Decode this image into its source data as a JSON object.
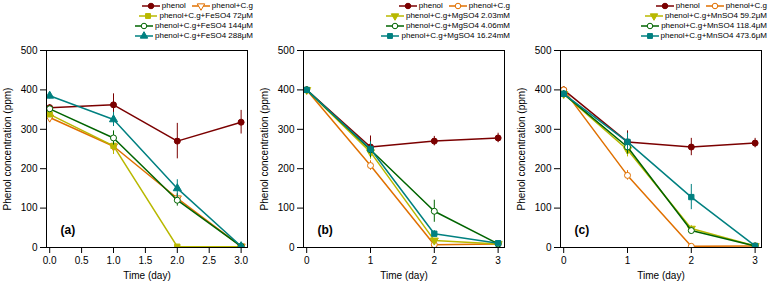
{
  "chart_data": [
    {
      "type": "line",
      "annotation": "(a)",
      "xlabel": "Time (day)",
      "ylabel": "Phenol concentration (ppm)",
      "xlim": [
        -0.05,
        3.1
      ],
      "ylim": [
        0,
        500
      ],
      "xticks": [
        {
          "value": 0.0,
          "label": "0.0"
        },
        {
          "value": 0.5,
          "label": "0.5"
        },
        {
          "value": 1.0,
          "label": "1.0"
        },
        {
          "value": 1.5,
          "label": "1.5"
        },
        {
          "value": 2.0,
          "label": "2.0"
        },
        {
          "value": 2.5,
          "label": "2.5"
        },
        {
          "value": 3.0,
          "label": "3.0"
        }
      ],
      "yticks": [
        0,
        100,
        200,
        300,
        400,
        500
      ],
      "grid": false,
      "legend": "upper right",
      "x": [
        0,
        1,
        2,
        3
      ],
      "series": [
        {
          "name": "phenol",
          "color": "#7B0000",
          "marker": "circle",
          "values": [
            355,
            362,
            270,
            318
          ],
          "errors": [
            8,
            28,
            45,
            30
          ]
        },
        {
          "name": "phenol+C.g",
          "color": "#E07000",
          "marker": "triangle-down-open",
          "values": [
            330,
            257,
            125,
            3
          ],
          "errors": [
            8,
            18,
            12,
            2
          ]
        },
        {
          "name": "phenol+C.g+FeSO4 72μM",
          "color": "#B8B800",
          "marker": "square",
          "values": [
            338,
            258,
            2,
            2
          ],
          "errors": [
            8,
            22,
            2,
            1
          ]
        },
        {
          "name": "phenol+C.g+FeSO4 144μM",
          "color": "#006400",
          "marker": "circle-open",
          "values": [
            352,
            278,
            120,
            3
          ],
          "errors": [
            8,
            18,
            15,
            2
          ]
        },
        {
          "name": "phenol+C.g+FeSO4 288μM",
          "color": "#008080",
          "marker": "triangle",
          "values": [
            385,
            325,
            150,
            3
          ],
          "errors": [
            8,
            18,
            22,
            2
          ]
        }
      ]
    },
    {
      "type": "line",
      "annotation": "(b)",
      "xlabel": "Time (day)",
      "ylabel": "Phenol concentration (ppm)",
      "xlim": [
        -0.05,
        3.1
      ],
      "ylim": [
        0,
        500
      ],
      "xticks": [
        0,
        1,
        2,
        3
      ],
      "yticks": [
        0,
        100,
        200,
        300,
        400,
        500
      ],
      "grid": false,
      "legend": "upper right",
      "x": [
        0,
        1,
        2,
        3
      ],
      "series": [
        {
          "name": "phenol",
          "color": "#7B0000",
          "marker": "circle",
          "values": [
            400,
            255,
            270,
            278
          ],
          "errors": [
            8,
            28,
            12,
            12
          ]
        },
        {
          "name": "phenol+C.g",
          "color": "#E07000",
          "marker": "circle-open",
          "values": [
            400,
            208,
            7,
            9
          ],
          "errors": [
            8,
            12,
            4,
            4
          ]
        },
        {
          "name": "phenol+C.g+MgSO4 2.03mM",
          "color": "#B8B800",
          "marker": "triangle-down",
          "values": [
            400,
            242,
            18,
            9
          ],
          "errors": [
            8,
            18,
            4,
            4
          ]
        },
        {
          "name": "phenol+C.g+MgSO4 4.06mM",
          "color": "#006400",
          "marker": "circle-open",
          "values": [
            400,
            248,
            92,
            9
          ],
          "errors": [
            8,
            20,
            28,
            4
          ]
        },
        {
          "name": "phenol+C.g+MgSO4 16.24mM",
          "color": "#008080",
          "marker": "square",
          "values": [
            400,
            250,
            35,
            11
          ],
          "errors": [
            8,
            18,
            8,
            4
          ]
        }
      ]
    },
    {
      "type": "line",
      "annotation": "(c)",
      "xlabel": "Time (day)",
      "ylabel": "Phenol concentration (ppm)",
      "xlim": [
        -0.05,
        3.1
      ],
      "ylim": [
        0,
        500
      ],
      "xticks": [
        0,
        1,
        2,
        3
      ],
      "yticks": [
        0,
        100,
        200,
        300,
        400,
        500
      ],
      "grid": false,
      "legend": "upper right",
      "x": [
        0,
        1,
        2,
        3
      ],
      "series": [
        {
          "name": "phenol",
          "color": "#7B0000",
          "marker": "circle",
          "values": [
            400,
            268,
            255,
            265
          ],
          "errors": [
            8,
            28,
            22,
            12
          ]
        },
        {
          "name": "phenol+C.g",
          "color": "#E07000",
          "marker": "circle-open",
          "values": [
            400,
            183,
            3,
            4
          ],
          "errors": [
            8,
            12,
            2,
            2
          ]
        },
        {
          "name": "phenol+C.g+MnSO4 59.2μM",
          "color": "#B8B800",
          "marker": "triangle-down",
          "values": [
            390,
            248,
            48,
            4
          ],
          "errors": [
            8,
            18,
            8,
            2
          ]
        },
        {
          "name": "phenol+C.g+MnSO4 118.4μM",
          "color": "#006400",
          "marker": "circle-open",
          "values": [
            390,
            255,
            43,
            4
          ],
          "errors": [
            8,
            18,
            8,
            2
          ]
        },
        {
          "name": "phenol+C.g+MnSO4 473.6μM",
          "color": "#008080",
          "marker": "square",
          "values": [
            390,
            268,
            128,
            4
          ],
          "errors": [
            8,
            22,
            32,
            2
          ]
        }
      ]
    }
  ]
}
